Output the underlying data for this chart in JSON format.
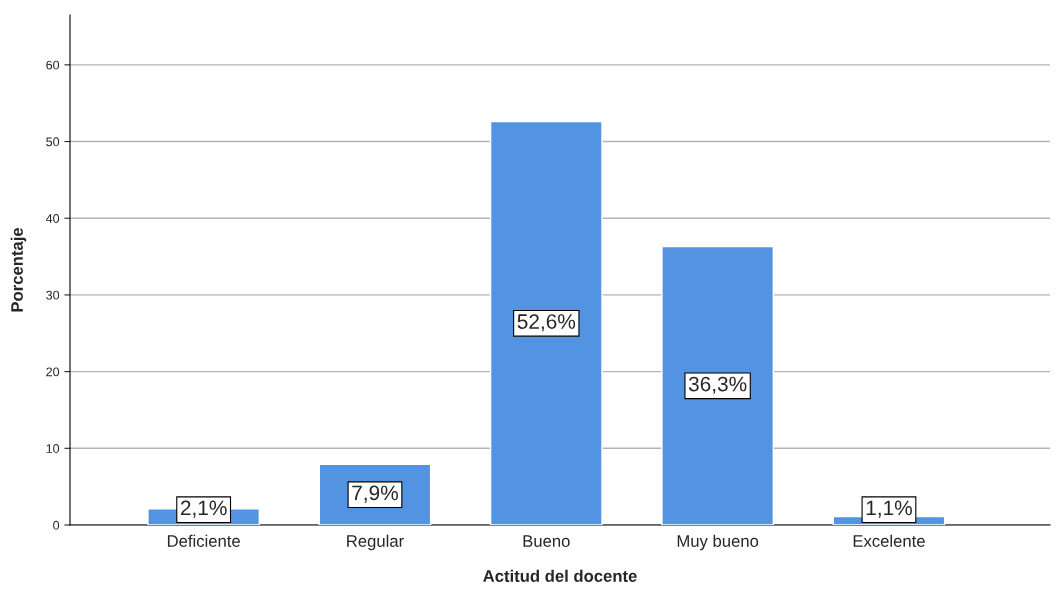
{
  "chart_data": {
    "type": "bar",
    "xlabel": "Actitud del docente",
    "ylabel": "Porcentaje",
    "categories": [
      "Deficiente",
      "Regular",
      "Bueno",
      "Muy bueno",
      "Excelente"
    ],
    "values": [
      2.1,
      7.9,
      52.6,
      36.3,
      1.1
    ],
    "value_labels": [
      "2,1%",
      "7,9%",
      "52,6%",
      "36,3%",
      "1,1%"
    ],
    "color": "#5294e2",
    "ylim": [
      0,
      66.5
    ],
    "yticks": [
      0,
      10,
      20,
      30,
      40,
      50,
      60
    ],
    "grid": "y",
    "legend": false
  }
}
